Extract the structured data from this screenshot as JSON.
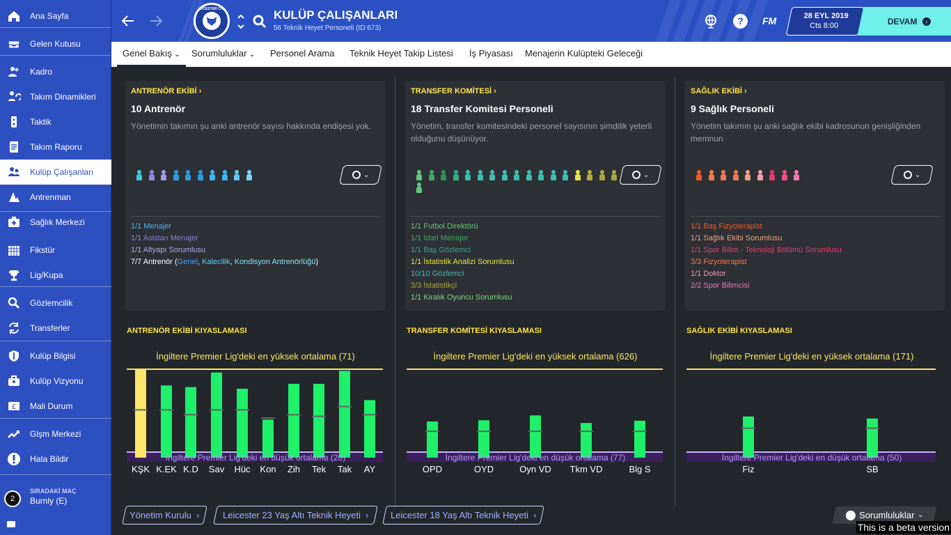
{
  "sidebar": {
    "items": [
      {
        "label": "Ana Sayfa",
        "icon": "home-icon"
      },
      {
        "label": "Gelen Kutusu",
        "icon": "inbox-icon"
      },
      {
        "label": "Kadro",
        "icon": "squad-icon"
      },
      {
        "label": "Takım Dinamikleri",
        "icon": "dynamics-icon"
      },
      {
        "label": "Taktik",
        "icon": "tactics-icon"
      },
      {
        "label": "Takım Raporu",
        "icon": "report-icon"
      },
      {
        "label": "Kulüp Çalışanları",
        "icon": "staff-icon"
      },
      {
        "label": "Antrenman",
        "icon": "training-icon"
      },
      {
        "label": "Sağlık Merkezi",
        "icon": "medical-icon"
      },
      {
        "label": "Fikstür",
        "icon": "calendar-icon"
      },
      {
        "label": "Lig/Kupa",
        "icon": "trophy-icon"
      },
      {
        "label": "Gözlemcilik",
        "icon": "scouting-icon"
      },
      {
        "label": "Transferler",
        "icon": "transfer-icon"
      },
      {
        "label": "Kulüp Bilgisi",
        "icon": "shield-icon"
      },
      {
        "label": "Kulüp Vizyonu",
        "icon": "briefcase-icon"
      },
      {
        "label": "Mali Durum",
        "icon": "finance-icon"
      },
      {
        "label": "Glşm Merkezi",
        "icon": "development-icon"
      },
      {
        "label": "Hata Bildir",
        "icon": "alert-icon"
      }
    ],
    "next_match": {
      "caption": "SIRADAKİ MAÇ",
      "opponent": "Burnly (E)",
      "days": "2"
    }
  },
  "header": {
    "title": "KULÜP ÇALIŞANLARI",
    "subtitle": "56 Teknik Heyet Personeli (ID:673)",
    "club_badge_text": "LEICESTER CITY",
    "fm_label": "FM",
    "date": "28 EYL 2019",
    "day_time": "Cts 8:00",
    "continue_label": "DEVAM"
  },
  "tabs": [
    {
      "label": "Genel Bakış",
      "dropdown": true
    },
    {
      "label": "Sorumluluklar",
      "dropdown": true
    },
    {
      "label": "Personel Arama",
      "dropdown": false
    },
    {
      "label": "Teknik Heyet Takip Listesi",
      "dropdown": false
    },
    {
      "label": "İş Piyasası",
      "dropdown": false
    },
    {
      "label": "Menajerin Kulüpteki Geleceği",
      "dropdown": false
    }
  ],
  "cards": [
    {
      "header": "ANTRENÖR EKİBİ",
      "header_color": "#ffe54a",
      "title": "10 Antrenör",
      "description": "Yönetimin takımın şu anki antrenör sayısı hakkında endişesi yok.",
      "people_colors": [
        "#3fc7e0",
        "#8f86e8",
        "#a89be6",
        "#2e9be0",
        "#2e9be0",
        "#2e9be0",
        "#3cb8f0",
        "#3cb8f0",
        "#62c7f5",
        "#7fd3f5"
      ],
      "items": [
        {
          "text": "1/1 Menajer",
          "color": "#4fb4f0"
        },
        {
          "text": "1/1 Asistan Menajer",
          "color": "#8a80d8"
        },
        {
          "text": "1/1 Altyapı Sorumlusu",
          "color": "#b4a6ee"
        },
        {
          "text": "7/7 Antrenör (",
          "color": "#ffffff",
          "parts": [
            {
              "text": "Genel",
              "color": "#3fa8f5"
            },
            {
              "text": ", ",
              "color": "#ffffff"
            },
            {
              "text": "Kalecilik",
              "color": "#61d0f5"
            },
            {
              "text": ", ",
              "color": "#ffffff"
            },
            {
              "text": "Kondisyon Antrenörlüğü",
              "color": "#8ee0f8"
            },
            {
              "text": ")",
              "color": "#ffffff"
            }
          ]
        }
      ]
    },
    {
      "header": "TRANSFER KOMİTESİ",
      "header_color": "#ffe54a",
      "title": "18 Transfer Komitesi Personeli",
      "description": "Yönetim, transfer komitesindeki personel sayısının şimdilik yeterli olduğunu düşünüyor.",
      "people_colors": [
        "#5fc87a",
        "#3fa866",
        "#2f8f5a",
        "#2fae7e",
        "#3fbdb0",
        "#3fbdb0",
        "#3fbdb0",
        "#3fbdb0",
        "#3fbdb0",
        "#3fbdb0",
        "#3fbdb0",
        "#3fbdb0",
        "#3fbdb0",
        "#e6e64a",
        "#b3ad3c",
        "#a8a840",
        "#a8a840",
        "#5fc87a"
      ],
      "items": [
        {
          "text": "1/1 Futbol Direktörü",
          "color": "#5fc87a"
        },
        {
          "text": "1/1 İdari Menajer",
          "color": "#3fa866"
        },
        {
          "text": "1/1 Baş Gözlemci",
          "color": "#2fae7e"
        },
        {
          "text": "1/1 İstatistik Analizi Sorumlusu",
          "color": "#e6e64a"
        },
        {
          "text": "10/10 Gözlemci",
          "color": "#3fbdb0"
        },
        {
          "text": "3/3 İstatistikçi",
          "color": "#a8a840"
        },
        {
          "text": "1/1 Kiralık Oyuncu Sorumlusu",
          "color": "#7fd488"
        }
      ]
    },
    {
      "header": "SAĞLIK EKİBİ",
      "header_color": "#ffe54a",
      "title": "9 Sağlık Personeli",
      "description": "Yönetim takımın şu anki sağlık ekibi kadrosunun genişliğinden memnun",
      "people_colors": [
        "#f05a28",
        "#f07a50",
        "#f07a50",
        "#f07a50",
        "#f0a080",
        "#f09db0",
        "#e83c6e",
        "#f0508a",
        "#f078b8"
      ],
      "items": [
        {
          "text": "1/1 Baş Fizyoterapist",
          "color": "#f05a28"
        },
        {
          "text": "1/1 Sağlık Ekibi Sorumlusu",
          "color": "#f0a080"
        },
        {
          "text": "1/1 Spor Bilim - Teknoloji Bölümü Sorumlusu",
          "color": "#e83c6e"
        },
        {
          "text": "3/3 Fizyoterapist",
          "color": "#f07a50"
        },
        {
          "text": "1/1 Doktor",
          "color": "#f09db0"
        },
        {
          "text": "2/2 Spor Bilimcisi",
          "color": "#f078b8"
        }
      ]
    }
  ],
  "benchmark_titles": [
    "ANTRENÖR EKİBİ KIYASLAMASI",
    "TRANSFER KOMİTESİ KIYASLAMASI",
    "SAĞLIK EKİBİ KIYASLAMASI"
  ],
  "chart_data": [
    {
      "type": "bar",
      "title": "ANTRENÖR EKİBİ KIYASLAMASI",
      "top_label": "İngiltere Premier Lig'deki en yüksek ortalama (71)",
      "bottom_label": "İngiltere Premier Lig'deki en düşük ortalama (20)",
      "high": 71,
      "low": 20,
      "categories": [
        "KŞK",
        "K.EK",
        "K.D",
        "Sav",
        "Hüc",
        "Kon",
        "Zih",
        "Tek",
        "Tak",
        "AY"
      ],
      "values": [
        71,
        61,
        60,
        69,
        59,
        40,
        62,
        62,
        70,
        52
      ],
      "averages": [
        46,
        46,
        43,
        46,
        46,
        41,
        43,
        42,
        48,
        43
      ],
      "highlight_index": 0,
      "bar_color": "#1ef06a",
      "highlight_color": "#ffe56a"
    },
    {
      "type": "bar",
      "title": "TRANSFER KOMİTESİ KIYASLAMASI",
      "top_label": "İngiltere Premier Lig'deki en yüksek ortalama (626)",
      "bottom_label": "İngiltere Premier Lig'deki en düşük ortalama (77)",
      "high": 626,
      "low": 77,
      "categories": [
        "OPD",
        "OYD",
        "Oyn VD",
        "Tkm VD",
        "Blg S"
      ],
      "values": [
        280,
        288,
        320,
        270,
        285
      ],
      "averages": [
        215,
        215,
        215,
        215,
        215
      ],
      "bar_color": "#1ef06a"
    },
    {
      "type": "bar",
      "title": "SAĞLIK EKİBİ KIYASLAMASI",
      "top_label": "İngiltere Premier Lig'deki en yüksek ortalama (171)",
      "bottom_label": "İngiltere Premier Lig'deki en düşük ortalama (50)",
      "high": 171,
      "low": 50,
      "categories": [
        "Fiz",
        "SB"
      ],
      "values": [
        102,
        99
      ],
      "averages": [
        85,
        85
      ],
      "bar_color": "#1ef06a"
    }
  ],
  "bottom_links": [
    "Yönetim Kurulu",
    "Leicester 23 Yaş Altı Teknik Heyeti",
    "Leicester 18 Yaş Altı Teknik Heyeti"
  ],
  "responsibilities_label": "Sorumluluklar",
  "beta_label": "This is a beta version"
}
